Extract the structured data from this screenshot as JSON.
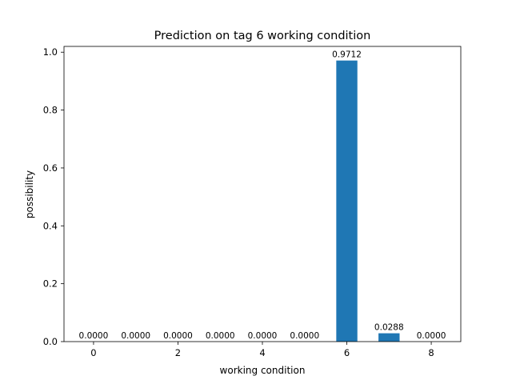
{
  "chart_data": {
    "type": "bar",
    "title": "Prediction on tag 6 working condition",
    "xlabel": "working condition",
    "ylabel": "possibility",
    "categories": [
      0,
      1,
      2,
      3,
      4,
      5,
      6,
      7,
      8
    ],
    "values": [
      0.0,
      0.0,
      0.0,
      0.0,
      0.0,
      0.0,
      0.9712,
      0.0288,
      0.0
    ],
    "data_labels": [
      "0.0000",
      "0.0000",
      "0.0000",
      "0.0000",
      "0.0000",
      "0.0000",
      "0.9712",
      "0.0288",
      "0.0000"
    ],
    "xticks": [
      0,
      2,
      4,
      6,
      8
    ],
    "xtick_labels": [
      "0",
      "2",
      "4",
      "6",
      "8"
    ],
    "yticks": [
      0.0,
      0.2,
      0.4,
      0.6,
      0.8,
      1.0
    ],
    "ytick_labels": [
      "0.0",
      "0.2",
      "0.4",
      "0.6",
      "0.8",
      "1.0"
    ],
    "xlim": [
      -0.7,
      8.7
    ],
    "ylim": [
      0,
      1.02
    ],
    "bar_color": "#1f77b4",
    "grid": false,
    "legend": "none"
  }
}
